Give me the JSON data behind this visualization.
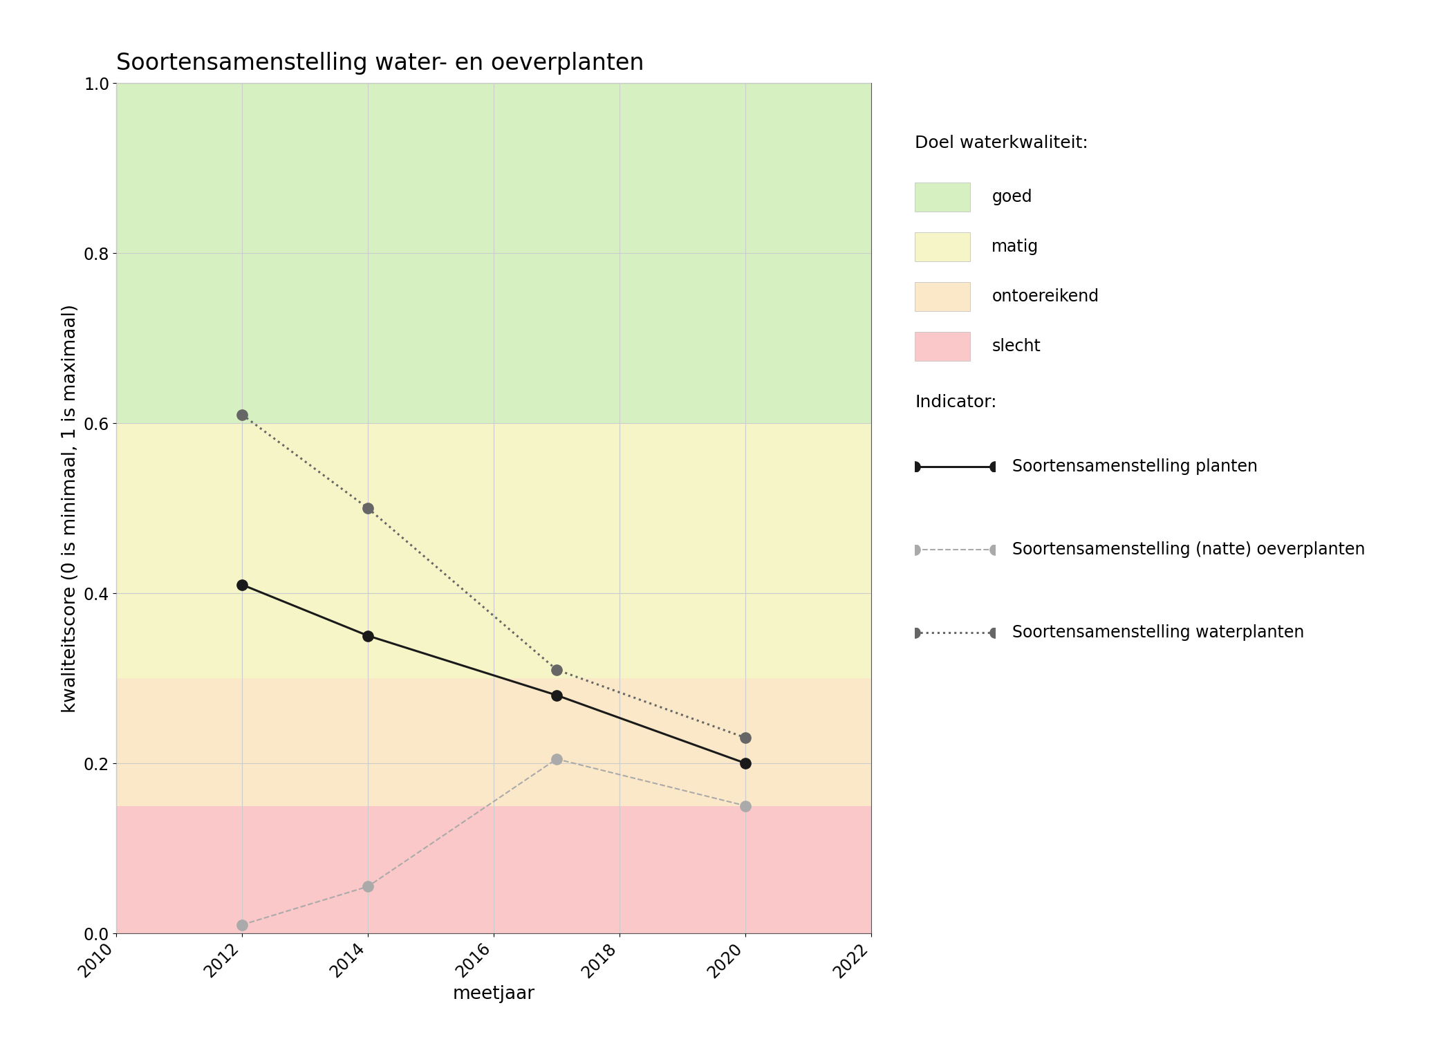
{
  "title": "Soortensamenstelling water- en oeverplanten",
  "xlabel": "meetjaar",
  "ylabel": "kwaliteitscore (0 is minimaal, 1 is maximaal)",
  "xlim": [
    2010,
    2022
  ],
  "ylim": [
    0.0,
    1.0
  ],
  "xticks": [
    2010,
    2012,
    2014,
    2016,
    2018,
    2020,
    2022
  ],
  "yticks": [
    0.0,
    0.2,
    0.4,
    0.6,
    0.8,
    1.0
  ],
  "background_zones": [
    {
      "ymin": 0.6,
      "ymax": 1.0,
      "color": "#d6f0c2",
      "label": "goed"
    },
    {
      "ymin": 0.3,
      "ymax": 0.6,
      "color": "#f5f5c8",
      "label": "matig"
    },
    {
      "ymin": 0.15,
      "ymax": 0.3,
      "color": "#fae8c8",
      "label": "ontoereikend"
    },
    {
      "ymin": 0.0,
      "ymax": 0.15,
      "color": "#fac8c8",
      "label": "slecht"
    }
  ],
  "series_planten": {
    "x": [
      2012,
      2014,
      2017,
      2020
    ],
    "y": [
      0.41,
      0.35,
      0.28,
      0.2
    ],
    "color": "#1a1a1a",
    "linestyle": "solid",
    "linewidth": 2.2,
    "marker": "o",
    "markersize": 11,
    "label": "Soortensamenstelling planten"
  },
  "series_oeverplanten": {
    "x": [
      2012,
      2014,
      2017,
      2020
    ],
    "y": [
      0.01,
      0.055,
      0.205,
      0.15
    ],
    "color": "#aaaaaa",
    "linestyle": "dashed",
    "linewidth": 1.5,
    "marker": "o",
    "markersize": 11,
    "label": "Soortensamenstelling (natte) oeverplanten"
  },
  "series_waterplanten": {
    "x": [
      2012,
      2014,
      2017,
      2020
    ],
    "y": [
      0.61,
      0.5,
      0.31,
      0.23
    ],
    "color": "#666666",
    "linestyle": "dotted",
    "linewidth": 2.2,
    "marker": "o",
    "markersize": 11,
    "label": "Soortensamenstelling waterplanten"
  },
  "legend_title_kwaliteit": "Doel waterkwaliteit:",
  "legend_title_indicator": "Indicator:",
  "background_color": "#ffffff",
  "grid_color": "#cccccc",
  "title_fontsize": 24,
  "label_fontsize": 19,
  "tick_fontsize": 17,
  "legend_fontsize": 17,
  "legend_title_fontsize": 18
}
